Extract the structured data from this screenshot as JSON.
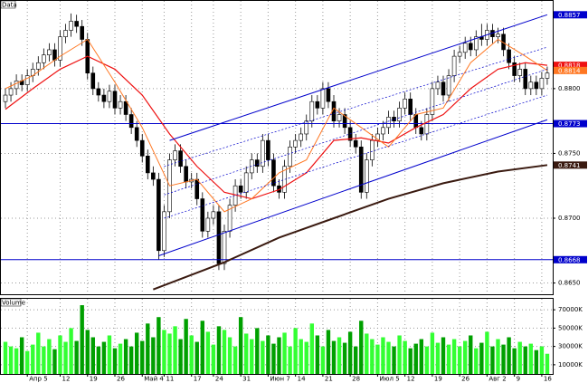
{
  "chart_data": [
    {
      "type": "candlestick",
      "title": "Data",
      "open": [
        0.879,
        0.8795,
        0.88,
        0.8806,
        0.8803,
        0.881,
        0.8815,
        0.882,
        0.8826,
        0.883,
        0.8822,
        0.884,
        0.8845,
        0.8852,
        0.8848,
        0.8838,
        0.8812,
        0.88,
        0.8795,
        0.879,
        0.8798,
        0.8785,
        0.879,
        0.878,
        0.877,
        0.876,
        0.8748,
        0.8735,
        0.873,
        0.8675,
        0.8705,
        0.8745,
        0.8752,
        0.874,
        0.8728,
        0.873,
        0.8715,
        0.869,
        0.87,
        0.8705,
        0.8665,
        0.869,
        0.871,
        0.8725,
        0.872,
        0.8735,
        0.8745,
        0.874,
        0.876,
        0.8745,
        0.8725,
        0.872,
        0.874,
        0.8755,
        0.876,
        0.8765,
        0.8775,
        0.879,
        0.8785,
        0.88,
        0.879,
        0.8775,
        0.878,
        0.877,
        0.876,
        0.8755,
        0.872,
        0.8745,
        0.876,
        0.8765,
        0.877,
        0.8778,
        0.8775,
        0.8785,
        0.8792,
        0.878,
        0.877,
        0.8765,
        0.878,
        0.88,
        0.8805,
        0.8795,
        0.881,
        0.8825,
        0.8828,
        0.8835,
        0.883,
        0.884,
        0.8838,
        0.8845,
        0.884,
        0.8842,
        0.883,
        0.882,
        0.881,
        0.8815,
        0.88,
        0.8805,
        0.88,
        0.8808
      ],
      "high": [
        0.88,
        0.8805,
        0.8811,
        0.8811,
        0.8815,
        0.882,
        0.8825,
        0.8831,
        0.8835,
        0.8835,
        0.8845,
        0.885,
        0.8858,
        0.8857,
        0.8853,
        0.8843,
        0.8817,
        0.8805,
        0.88,
        0.8803,
        0.8803,
        0.8795,
        0.8795,
        0.8785,
        0.8775,
        0.8765,
        0.8753,
        0.874,
        0.8735,
        0.871,
        0.875,
        0.8757,
        0.8757,
        0.8745,
        0.8735,
        0.8735,
        0.872,
        0.8705,
        0.871,
        0.871,
        0.8695,
        0.8715,
        0.873,
        0.873,
        0.874,
        0.875,
        0.875,
        0.8765,
        0.8765,
        0.875,
        0.873,
        0.8745,
        0.876,
        0.8765,
        0.877,
        0.878,
        0.8795,
        0.8795,
        0.8805,
        0.8805,
        0.8795,
        0.8785,
        0.8785,
        0.8775,
        0.8765,
        0.876,
        0.875,
        0.8765,
        0.877,
        0.8775,
        0.8783,
        0.8783,
        0.879,
        0.8797,
        0.8797,
        0.8785,
        0.8775,
        0.8785,
        0.8805,
        0.881,
        0.881,
        0.8815,
        0.883,
        0.8833,
        0.884,
        0.884,
        0.8845,
        0.885,
        0.885,
        0.885,
        0.8847,
        0.8847,
        0.8835,
        0.8825,
        0.882,
        0.882,
        0.881,
        0.881,
        0.8813,
        0.8817
      ],
      "low": [
        0.8785,
        0.879,
        0.8795,
        0.8798,
        0.8798,
        0.8805,
        0.881,
        0.8815,
        0.8821,
        0.8817,
        0.8817,
        0.8835,
        0.884,
        0.8843,
        0.8833,
        0.8807,
        0.8795,
        0.879,
        0.8785,
        0.8785,
        0.878,
        0.878,
        0.8775,
        0.8765,
        0.8755,
        0.8743,
        0.873,
        0.8725,
        0.8668,
        0.867,
        0.87,
        0.874,
        0.8735,
        0.8723,
        0.8723,
        0.871,
        0.8685,
        0.8685,
        0.8695,
        0.866,
        0.866,
        0.8685,
        0.8705,
        0.8715,
        0.8715,
        0.873,
        0.8735,
        0.8735,
        0.874,
        0.872,
        0.8715,
        0.8715,
        0.8735,
        0.875,
        0.8755,
        0.876,
        0.877,
        0.878,
        0.878,
        0.8785,
        0.877,
        0.877,
        0.8765,
        0.8755,
        0.875,
        0.8715,
        0.8715,
        0.874,
        0.8755,
        0.876,
        0.8765,
        0.877,
        0.877,
        0.878,
        0.8775,
        0.8765,
        0.876,
        0.876,
        0.8775,
        0.8795,
        0.879,
        0.879,
        0.8805,
        0.882,
        0.8823,
        0.8825,
        0.8825,
        0.8833,
        0.8833,
        0.8835,
        0.8835,
        0.8825,
        0.8815,
        0.8805,
        0.8805,
        0.8795,
        0.8795,
        0.8795,
        0.8795,
        0.8803
      ],
      "close": [
        0.8795,
        0.88,
        0.8806,
        0.8803,
        0.881,
        0.8815,
        0.882,
        0.8826,
        0.883,
        0.8822,
        0.884,
        0.8845,
        0.8852,
        0.8848,
        0.8838,
        0.8812,
        0.88,
        0.8795,
        0.879,
        0.8798,
        0.8785,
        0.879,
        0.878,
        0.877,
        0.876,
        0.8748,
        0.8735,
        0.873,
        0.8675,
        0.8705,
        0.8745,
        0.8752,
        0.874,
        0.8728,
        0.873,
        0.8715,
        0.869,
        0.87,
        0.8705,
        0.8665,
        0.869,
        0.871,
        0.8725,
        0.872,
        0.8735,
        0.8745,
        0.874,
        0.876,
        0.8745,
        0.8725,
        0.872,
        0.874,
        0.8755,
        0.876,
        0.8765,
        0.8775,
        0.879,
        0.8785,
        0.88,
        0.879,
        0.8775,
        0.878,
        0.877,
        0.876,
        0.8755,
        0.872,
        0.8745,
        0.876,
        0.8765,
        0.877,
        0.8778,
        0.8775,
        0.8785,
        0.8792,
        0.878,
        0.877,
        0.8765,
        0.878,
        0.88,
        0.8805,
        0.8795,
        0.881,
        0.8825,
        0.8828,
        0.8835,
        0.883,
        0.884,
        0.8838,
        0.8845,
        0.884,
        0.8842,
        0.883,
        0.882,
        0.881,
        0.8815,
        0.88,
        0.8805,
        0.88,
        0.8808,
        0.8812
      ],
      "up_color": "#ffffff",
      "down_color": "#000000",
      "ylim": [
        0.8642,
        0.8867
      ],
      "yticks": [
        {
          "value": 0.865,
          "label": "0.8650"
        },
        {
          "value": 0.87,
          "label": "0.8700"
        },
        {
          "value": 0.875,
          "label": "0.8750"
        },
        {
          "value": 0.88,
          "label": "0.8800"
        }
      ],
      "grid": true,
      "lines": [
        {
          "color": "#3a1a10",
          "width": 2,
          "badge": true,
          "x": [
            27,
            40,
            50,
            60,
            70,
            80,
            90,
            99
          ],
          "values": [
            0.8645,
            0.8666,
            0.8685,
            0.87,
            0.8715,
            0.8727,
            0.8736,
            0.8741
          ]
        },
        {
          "color": "#ee1111",
          "width": 1.2,
          "badge": true,
          "x": [
            0,
            5,
            10,
            15,
            20,
            25,
            30,
            35,
            40,
            45,
            50,
            55,
            60,
            65,
            70,
            75,
            80,
            85,
            90,
            95,
            99
          ],
          "values": [
            0.8784,
            0.88,
            0.8815,
            0.8825,
            0.8815,
            0.8795,
            0.8765,
            0.874,
            0.872,
            0.8715,
            0.8722,
            0.8735,
            0.876,
            0.8762,
            0.8758,
            0.877,
            0.878,
            0.88,
            0.8815,
            0.882,
            0.8818
          ]
        },
        {
          "color": "#ff7722",
          "width": 1,
          "badge": true,
          "x": [
            0,
            5,
            10,
            15,
            20,
            25,
            30,
            35,
            40,
            45,
            50,
            55,
            60,
            65,
            70,
            75,
            80,
            85,
            90,
            95,
            99
          ],
          "values": [
            0.88,
            0.881,
            0.8825,
            0.8838,
            0.8805,
            0.877,
            0.8725,
            0.873,
            0.8705,
            0.8715,
            0.8735,
            0.8745,
            0.8785,
            0.877,
            0.8755,
            0.878,
            0.8785,
            0.882,
            0.8838,
            0.8825,
            0.8814
          ]
        },
        {
          "color": "#0000cc",
          "width": 1,
          "badge": true,
          "x": [
            30,
            99
          ],
          "values": [
            0.876,
            0.8857
          ]
        },
        {
          "color": "#0000cc",
          "width": 1,
          "badge": false,
          "x": [
            28,
            99
          ],
          "values": [
            0.8671,
            0.8776
          ]
        },
        {
          "color": "#0000cc",
          "width": 0.7,
          "dash": true,
          "badge": false,
          "x": [
            29,
            99
          ],
          "values": [
            0.874,
            0.8832
          ]
        },
        {
          "color": "#0000cc",
          "width": 0.7,
          "dash": true,
          "badge": false,
          "x": [
            29,
            99
          ],
          "values": [
            0.8718,
            0.8815
          ]
        },
        {
          "color": "#0000cc",
          "width": 0.7,
          "dash": true,
          "badge": false,
          "x": [
            29,
            99
          ],
          "values": [
            0.87,
            0.8795
          ]
        }
      ],
      "hlines": [
        {
          "value": 0.8773,
          "color": "#0000cc"
        },
        {
          "value": 0.8668,
          "color": "#0000cc"
        }
      ]
    },
    {
      "type": "bar",
      "title": "Volume",
      "categories": [
        null,
        null,
        null,
        null,
        "Апр 5",
        null,
        null,
        null,
        null,
        null,
        "12",
        null,
        null,
        null,
        null,
        "19",
        null,
        null,
        null,
        null,
        "26",
        null,
        null,
        null,
        null,
        "Май 4",
        null,
        null,
        null,
        "11",
        null,
        null,
        null,
        null,
        "17",
        null,
        null,
        null,
        "24",
        null,
        null,
        null,
        null,
        "31",
        null,
        null,
        null,
        null,
        "Июн 7",
        null,
        null,
        null,
        null,
        "14",
        null,
        null,
        null,
        null,
        "21",
        null,
        null,
        null,
        null,
        "28",
        null,
        null,
        null,
        null,
        "Июл 5",
        null,
        null,
        null,
        null,
        "12",
        null,
        null,
        null,
        null,
        "19",
        null,
        null,
        null,
        null,
        "26",
        null,
        null,
        null,
        null,
        "Авг 2",
        null,
        null,
        null,
        null,
        "9",
        null,
        null,
        null,
        null,
        "16",
        null
      ],
      "values": [
        35000,
        30000,
        28000,
        40000,
        25000,
        32000,
        45000,
        30000,
        38000,
        27000,
        42000,
        35000,
        50000,
        36000,
        75000,
        48000,
        40000,
        30000,
        35000,
        42000,
        28000,
        33000,
        38000,
        30000,
        45000,
        36000,
        55000,
        40000,
        62000,
        48000,
        44000,
        52000,
        38000,
        60000,
        42000,
        35000,
        58000,
        46000,
        32000,
        52000,
        48000,
        40000,
        30000,
        62000,
        44000,
        38000,
        50000,
        36000,
        42000,
        33000,
        40000,
        45000,
        30000,
        50000,
        38000,
        35000,
        55000,
        42000,
        30000,
        48000,
        36000,
        40000,
        34000,
        46000,
        30000,
        58000,
        44000,
        38000,
        32000,
        40000,
        35000,
        30000,
        42000,
        36000,
        28000,
        33000,
        38000,
        30000,
        45000,
        34000,
        40000,
        32000,
        38000,
        30000,
        36000,
        42000,
        28000,
        34000,
        46000,
        30000,
        38000,
        32000,
        40000,
        28000,
        35000,
        30000,
        33000,
        26000,
        30000,
        22000
      ],
      "up_color": "#33ff33",
      "down_color": "#00a000",
      "ylim": [
        0,
        80000
      ],
      "yticks": [
        {
          "value": 10000,
          "label": "10000K"
        },
        {
          "value": 30000,
          "label": "30000K"
        },
        {
          "value": 50000,
          "label": "50000K"
        },
        {
          "value": 70000,
          "label": "70000K"
        }
      ],
      "grid": true
    }
  ]
}
